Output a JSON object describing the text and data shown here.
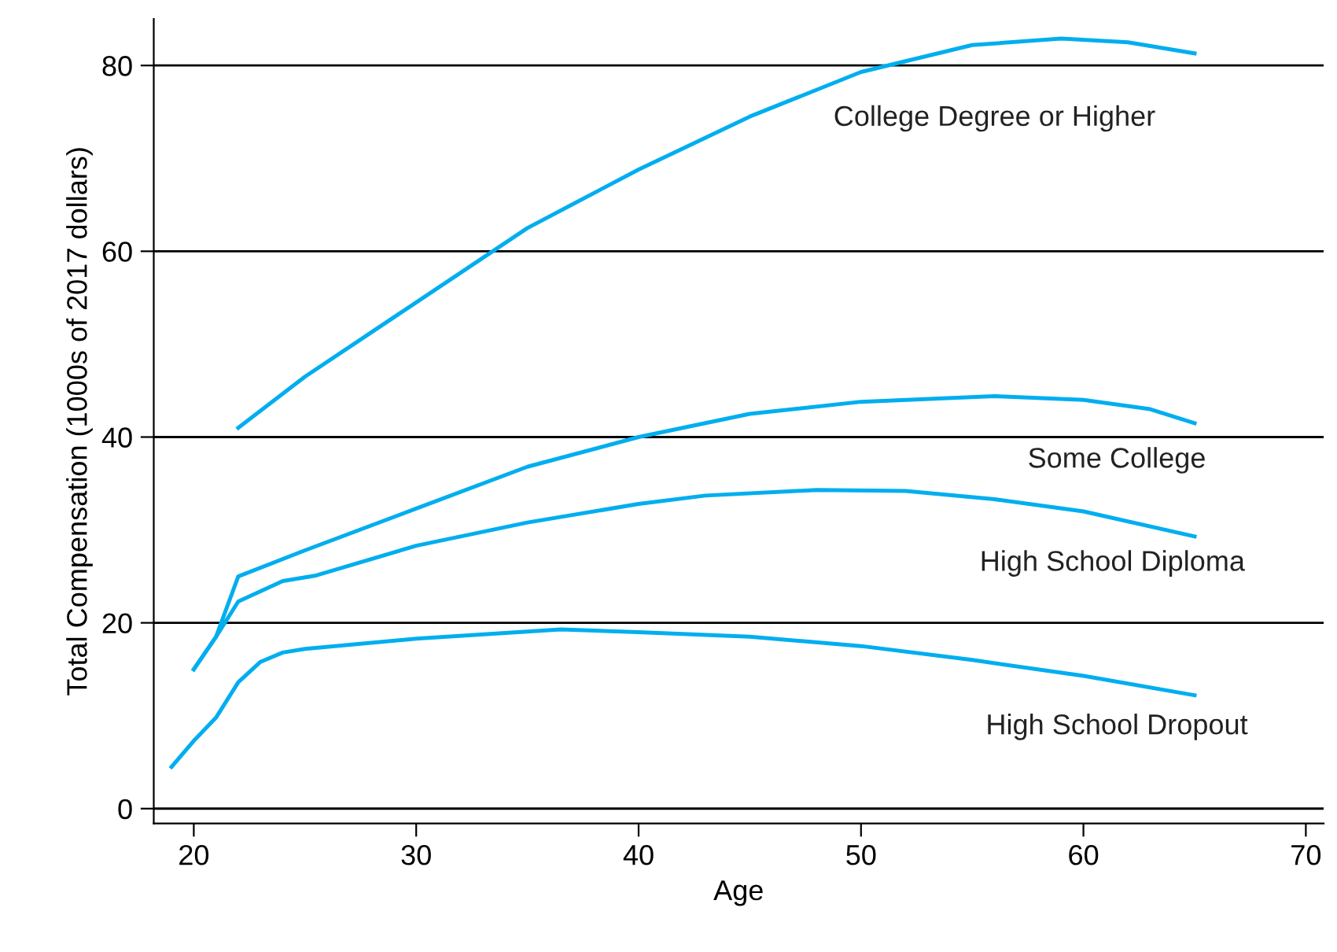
{
  "chart_data": {
    "type": "line",
    "xlabel": "Age",
    "ylabel": "Total Compensation (1000s of 2017 dollars)",
    "xlim": [
      18.2,
      70.8
    ],
    "xticks": [
      20,
      30,
      40,
      50,
      60,
      70
    ],
    "ylim": [
      -1.6,
      85
    ],
    "yticks": [
      0,
      20,
      40,
      60,
      80
    ],
    "grid": "y",
    "legend": false,
    "marker": "none",
    "line_style": "solid",
    "series": [
      {
        "name": "College Degree or Higher",
        "color": "#00aeef",
        "x": [
          22,
          25,
          30,
          35,
          40,
          45,
          50,
          55,
          59,
          62,
          65
        ],
        "values": [
          41,
          46.5,
          54.5,
          62.5,
          68.8,
          74.5,
          79.3,
          82.2,
          82.9,
          82.5,
          81.3
        ]
      },
      {
        "name": "Some College",
        "color": "#00aeef",
        "x": [
          20,
          21,
          22,
          25,
          30,
          35,
          40,
          45,
          50,
          56,
          60,
          63,
          65
        ],
        "values": [
          15,
          18.5,
          25,
          27.8,
          32.3,
          36.8,
          40,
          42.5,
          43.8,
          44.4,
          44,
          43,
          41.5
        ]
      },
      {
        "name": "High School Diploma",
        "color": "#00aeef",
        "x": [
          20,
          21,
          22,
          24,
          25.5,
          30,
          35,
          40,
          43,
          48,
          52,
          56,
          60,
          65
        ],
        "values": [
          15,
          18.5,
          22.3,
          24.5,
          25.1,
          28.3,
          30.8,
          32.8,
          33.7,
          34.3,
          34.2,
          33.3,
          32,
          29.3
        ]
      },
      {
        "name": "High School Dropout",
        "color": "#00aeef",
        "x": [
          19,
          20,
          21,
          22,
          23,
          24,
          25,
          30,
          36.5,
          40,
          45,
          50,
          55,
          60,
          65
        ],
        "values": [
          4.5,
          7.3,
          9.8,
          13.6,
          15.8,
          16.8,
          17.2,
          18.3,
          19.3,
          19,
          18.5,
          17.5,
          16,
          14.3,
          12.2
        ]
      }
    ]
  }
}
